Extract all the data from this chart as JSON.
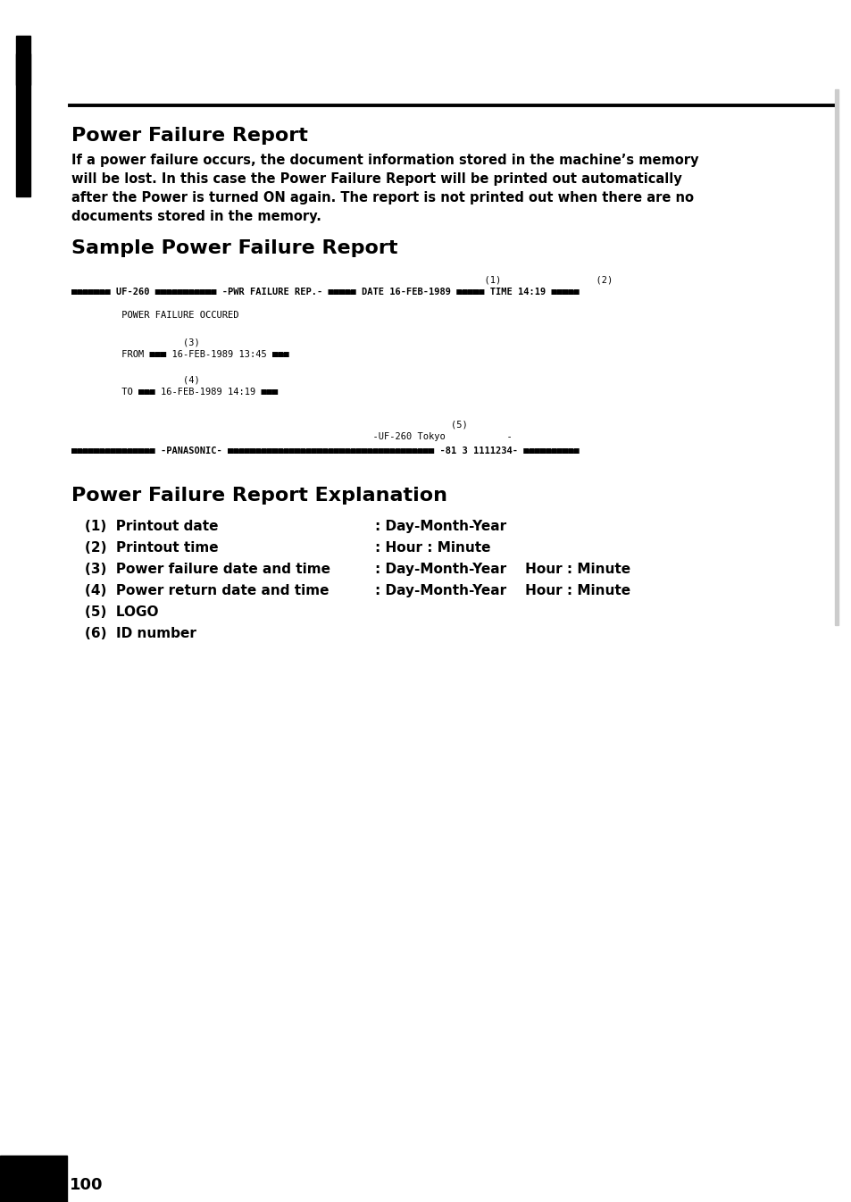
{
  "bg_color": "#ffffff",
  "page_number": "100",
  "section1_title": "Power Failure Report",
  "section1_body_lines": [
    "If a power failure occurs, the document information stored in the machine’s memory",
    "will be lost. In this case the Power Failure Report will be printed out automatically",
    "after the Power is turned ON again. The report is not printed out when there are no",
    "documents stored in the memory."
  ],
  "section2_title": "Sample Power Failure Report",
  "section3_title": "Power Failure Report Explanation",
  "explanation_items_left": [
    "(1)  Printout date",
    "(2)  Printout time",
    "(3)  Power failure date and time",
    "(4)  Power return date and time",
    "(5)  LOGO",
    "(6)  ID number"
  ],
  "explanation_items_right": [
    ": Day-Month-Year",
    ": Hour : Minute",
    ": Day-Month-Year    Hour : Minute",
    ": Day-Month-Year    Hour : Minute",
    "",
    ""
  ]
}
